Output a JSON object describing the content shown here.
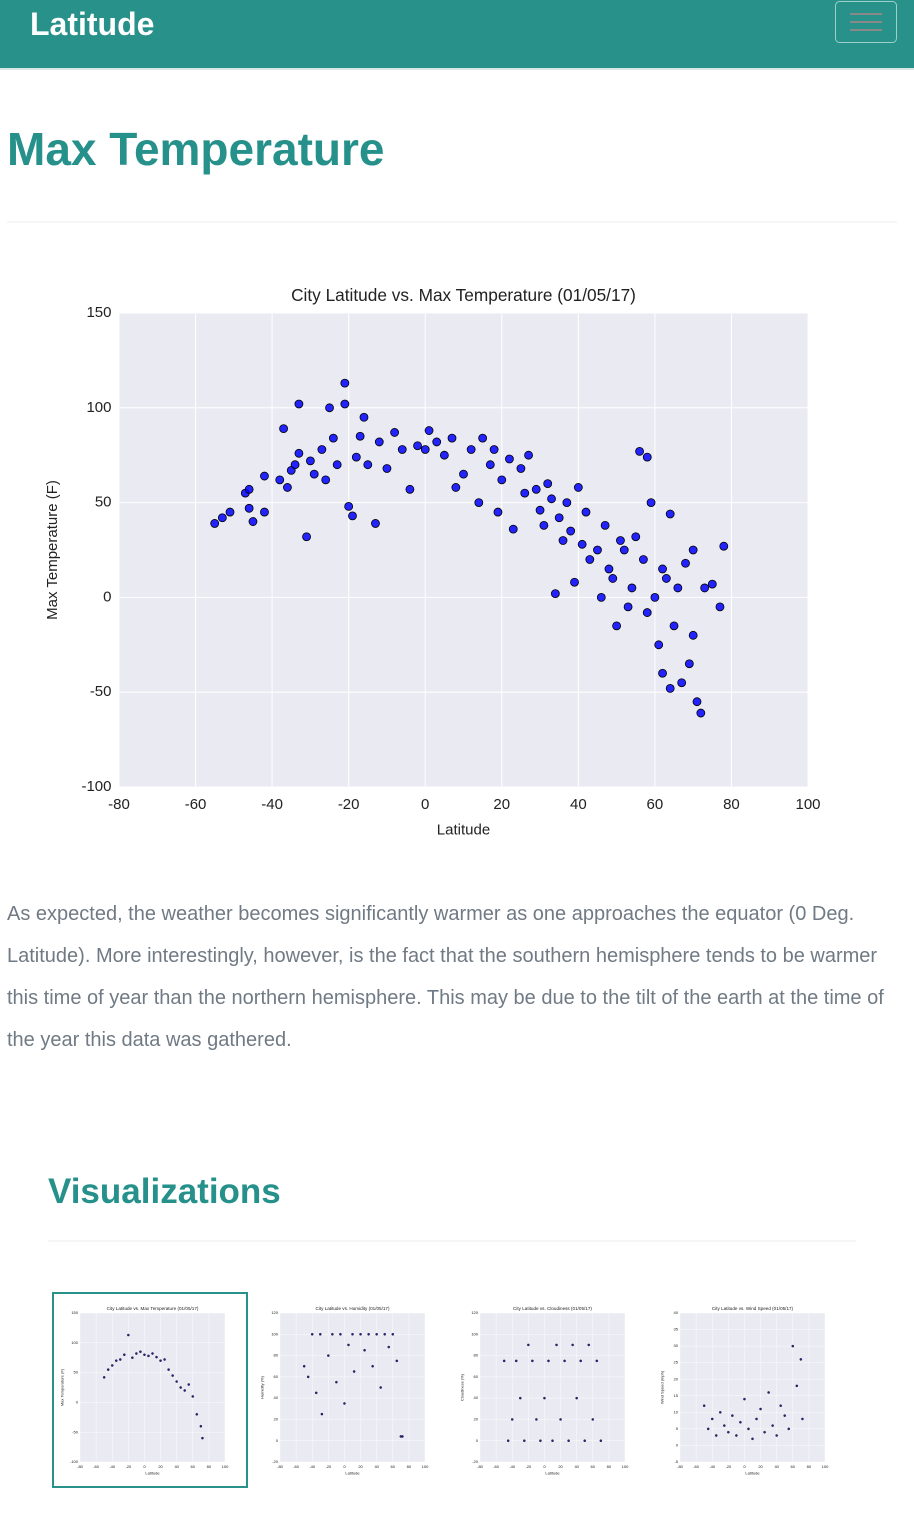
{
  "navbar": {
    "brand": "Latitude"
  },
  "header": {
    "title": "Max Temperature"
  },
  "chart_data": [
    {
      "type": "scatter",
      "title": "City Latitude vs. Max Temperature (01/05/17)",
      "x_label": "Latitude",
      "y_label": "Max Temperature (F)",
      "xlim": [
        -80,
        100
      ],
      "xticks": [
        -80,
        -60,
        -40,
        -20,
        0,
        20,
        40,
        60,
        80,
        100
      ],
      "ylim": [
        -100,
        150
      ],
      "yticks": [
        -100,
        -50,
        0,
        50,
        100,
        150
      ],
      "grid": true,
      "color": "#0000ff",
      "x": [
        -55,
        -53,
        -51,
        -47,
        -46,
        -46,
        -45,
        -42,
        -42,
        -38,
        -37,
        -36,
        -35,
        -34,
        -33,
        -33,
        -31,
        -30,
        -29,
        -27,
        -26,
        -25,
        -24,
        -23,
        -21,
        -21,
        -20,
        -19,
        -18,
        -17,
        -16,
        -15,
        -13,
        -12,
        -10,
        -8,
        -6,
        -4,
        -2,
        0,
        1,
        3,
        5,
        7,
        8,
        10,
        12,
        14,
        15,
        17,
        18,
        19,
        20,
        22,
        23,
        25,
        26,
        27,
        29,
        30,
        31,
        32,
        33,
        34,
        35,
        36,
        37,
        38,
        39,
        40,
        41,
        42,
        43,
        45,
        46,
        47,
        48,
        49,
        50,
        51,
        52,
        53,
        54,
        55,
        56,
        57,
        58,
        58,
        59,
        60,
        61,
        62,
        62,
        63,
        64,
        64,
        65,
        66,
        67,
        68,
        69,
        70,
        70,
        71,
        72,
        73,
        75,
        77,
        78
      ],
      "y": [
        39,
        42,
        45,
        55,
        57,
        47,
        40,
        64,
        45,
        62,
        89,
        58,
        67,
        70,
        102,
        76,
        32,
        72,
        65,
        78,
        62,
        100,
        84,
        70,
        113,
        102,
        48,
        43,
        74,
        85,
        95,
        70,
        39,
        82,
        68,
        87,
        78,
        57,
        80,
        78,
        88,
        82,
        75,
        84,
        58,
        65,
        78,
        50,
        84,
        70,
        78,
        45,
        62,
        73,
        36,
        68,
        55,
        75,
        57,
        46,
        38,
        60,
        52,
        2,
        42,
        30,
        50,
        35,
        8,
        58,
        28,
        45,
        20,
        25,
        0,
        38,
        15,
        10,
        -15,
        30,
        25,
        -5,
        5,
        32,
        77,
        20,
        74,
        -8,
        50,
        0,
        -25,
        15,
        -40,
        10,
        44,
        -48,
        -15,
        5,
        -45,
        18,
        -35,
        -20,
        25,
        -55,
        -61,
        5,
        7,
        -5,
        27
      ]
    },
    {
      "type": "scatter",
      "title": "City Latitude vs. Max Temperature (01/05/17)",
      "x_label": "Latitude",
      "y_label": "Max Temperature (F)",
      "xlim": [
        -80,
        100
      ],
      "xticks": [
        -80,
        -60,
        -40,
        -20,
        0,
        20,
        40,
        60,
        80,
        100
      ],
      "ylim": [
        -100,
        150
      ],
      "yticks": [
        -100,
        -50,
        0,
        50,
        100,
        150
      ],
      "grid": true,
      "color": "#000080",
      "x": [
        -50,
        -45,
        -40,
        -35,
        -30,
        -25,
        -20,
        -15,
        -10,
        -5,
        0,
        5,
        10,
        15,
        20,
        25,
        30,
        35,
        40,
        45,
        50,
        55,
        60,
        65,
        70,
        72
      ],
      "y": [
        42,
        55,
        62,
        70,
        72,
        80,
        113,
        75,
        82,
        85,
        80,
        78,
        82,
        76,
        70,
        72,
        55,
        45,
        35,
        25,
        20,
        30,
        10,
        -20,
        -40,
        -60
      ]
    },
    {
      "type": "scatter",
      "title": "City Latitude vs. Humidity (01/05/17)",
      "x_label": "Latitude",
      "y_label": "Humidity (%)",
      "xlim": [
        -80,
        100
      ],
      "xticks": [
        -80,
        -60,
        -40,
        -20,
        0,
        20,
        40,
        60,
        80,
        100
      ],
      "ylim": [
        -20,
        120
      ],
      "yticks": [
        -20,
        0,
        20,
        40,
        60,
        80,
        100,
        120
      ],
      "grid": true,
      "color": "#000080",
      "x": [
        -50,
        -45,
        -40,
        -35,
        -30,
        -28,
        -20,
        -15,
        -10,
        -5,
        0,
        5,
        10,
        12,
        20,
        25,
        30,
        35,
        40,
        45,
        50,
        55,
        60,
        65,
        70,
        72
      ],
      "y": [
        70,
        60,
        100,
        45,
        100,
        25,
        80,
        100,
        55,
        100,
        35,
        90,
        100,
        65,
        100,
        85,
        100,
        70,
        100,
        50,
        100,
        88,
        100,
        75,
        4,
        4
      ]
    },
    {
      "type": "scatter",
      "title": "City Latitude vs. Cloudiness (01/05/17)",
      "x_label": "Latitude",
      "y_label": "Cloudiness (%)",
      "xlim": [
        -80,
        100
      ],
      "xticks": [
        -80,
        -60,
        -40,
        -20,
        0,
        20,
        40,
        60,
        80,
        100
      ],
      "ylim": [
        -20,
        120
      ],
      "yticks": [
        -20,
        0,
        20,
        40,
        60,
        80,
        100,
        120
      ],
      "grid": true,
      "color": "#000080",
      "x": [
        -50,
        -45,
        -40,
        -35,
        -30,
        -25,
        -20,
        -15,
        -10,
        -5,
        0,
        5,
        10,
        15,
        20,
        25,
        30,
        35,
        40,
        45,
        50,
        55,
        60,
        65,
        70
      ],
      "y": [
        75,
        0,
        20,
        75,
        40,
        0,
        90,
        75,
        20,
        0,
        40,
        75,
        0,
        90,
        20,
        75,
        0,
        90,
        40,
        75,
        0,
        90,
        20,
        75,
        0
      ]
    },
    {
      "type": "scatter",
      "title": "City Latitude vs. Wind Speed (01/05/17)",
      "x_label": "Latitude",
      "y_label": "Wind Speed (mph)",
      "xlim": [
        -80,
        100
      ],
      "xticks": [
        -80,
        -60,
        -40,
        -20,
        0,
        20,
        40,
        60,
        80,
        100
      ],
      "ylim": [
        -5,
        40
      ],
      "yticks": [
        -5,
        0,
        5,
        10,
        15,
        20,
        25,
        30,
        35,
        40
      ],
      "grid": true,
      "color": "#000080",
      "x": [
        -50,
        -45,
        -40,
        -35,
        -30,
        -25,
        -20,
        -15,
        -10,
        -5,
        0,
        5,
        10,
        15,
        20,
        25,
        30,
        35,
        40,
        45,
        50,
        55,
        60,
        65,
        70,
        72
      ],
      "y": [
        12,
        5,
        8,
        3,
        10,
        6,
        4,
        9,
        3,
        7,
        14,
        5,
        2,
        8,
        11,
        4,
        16,
        6,
        3,
        12,
        9,
        5,
        30,
        18,
        26,
        8
      ]
    }
  ],
  "description": "As expected, the weather becomes significantly warmer as one approaches the equator (0 Deg. Latitude). More interestingly, however, is the fact that the southern hemisphere tends to be warmer this time of year than the northern hemisphere. This may be due to the tilt of the earth at the time of the year this data was gathered.",
  "visualizations": {
    "title": "Visualizations"
  }
}
